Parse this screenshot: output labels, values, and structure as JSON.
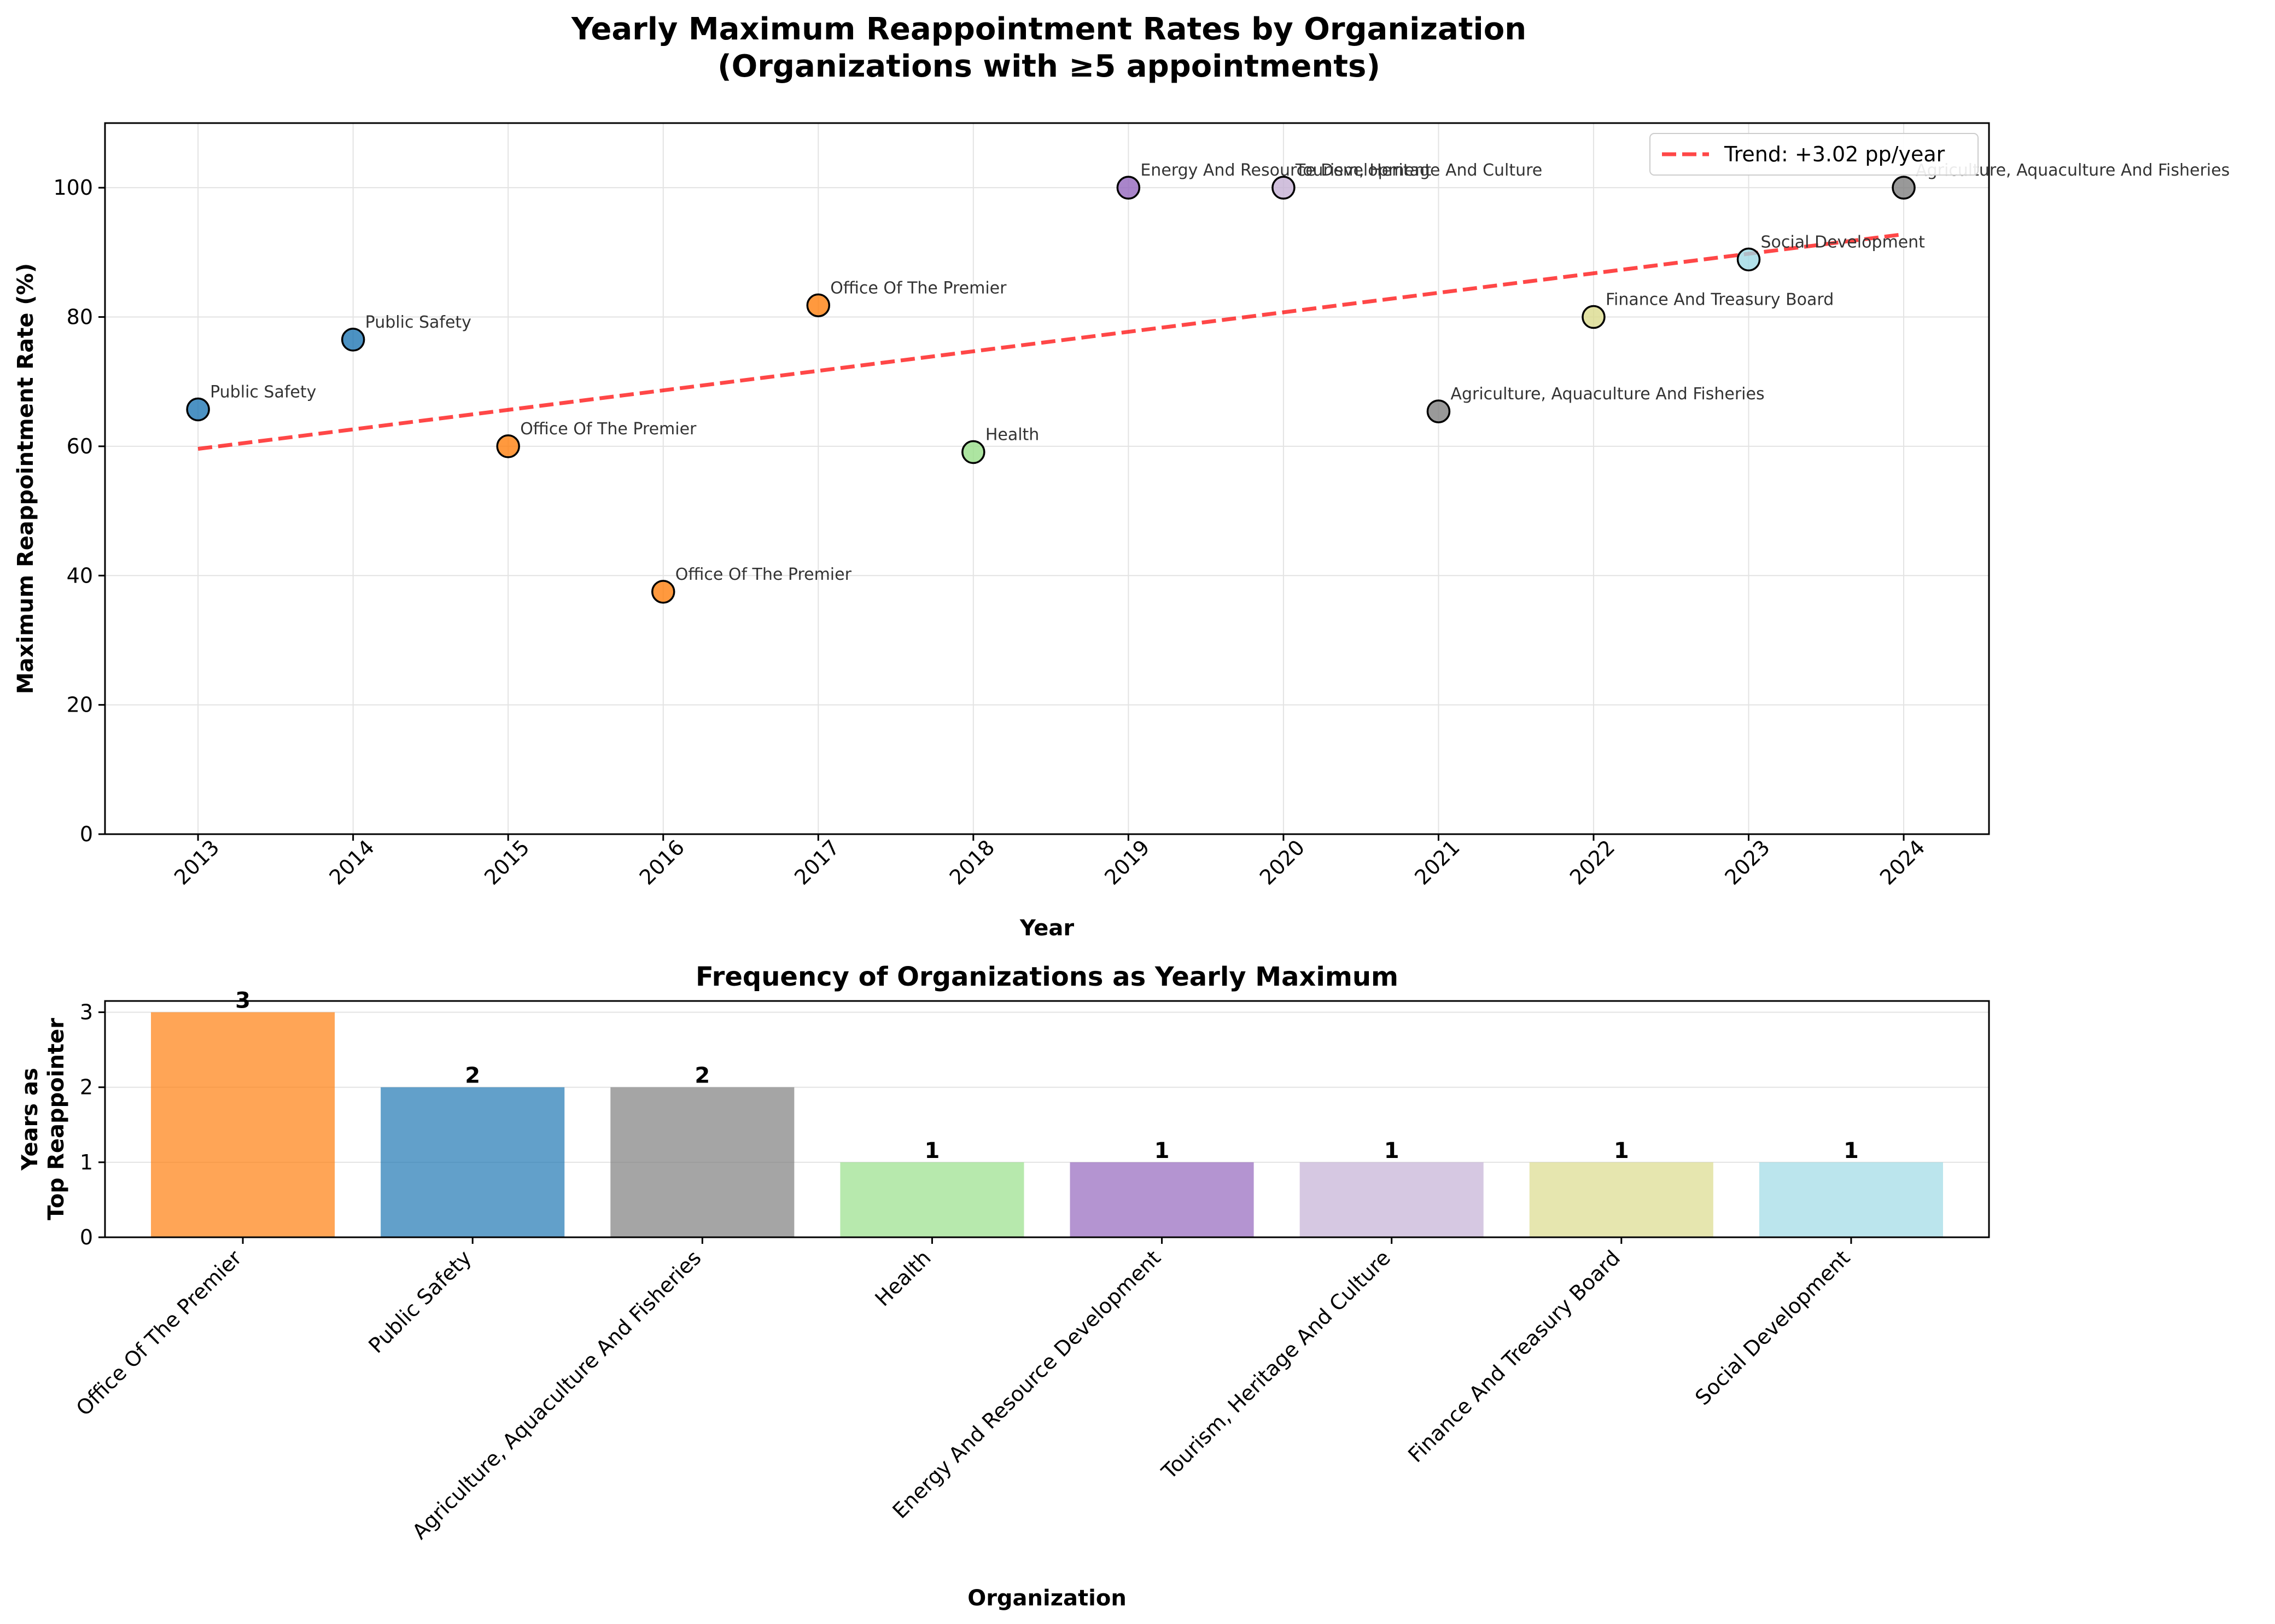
{
  "figure": {
    "title_line1": "Yearly Maximum Reappointment Rates by Organization",
    "title_line2": "(Organizations with ≥5 appointments)"
  },
  "chart_data": [
    {
      "type": "scatter",
      "title": "",
      "xlabel": "Year",
      "ylabel": "Maximum Reappointment Rate (%)",
      "xlim": [
        2012.4,
        2024.55
      ],
      "ylim": [
        0,
        110
      ],
      "xticks": [
        2013,
        2014,
        2015,
        2016,
        2017,
        2018,
        2019,
        2020,
        2021,
        2022,
        2023,
        2024
      ],
      "yticks": [
        0,
        20,
        40,
        60,
        80,
        100
      ],
      "grid": true,
      "legend_position": "top-right",
      "points": [
        {
          "x": 2013,
          "y": 65.7,
          "label": "Public Safety",
          "color": "#1f77b4"
        },
        {
          "x": 2014,
          "y": 76.5,
          "label": "Public Safety",
          "color": "#1f77b4"
        },
        {
          "x": 2015,
          "y": 60.0,
          "label": "Office Of The Premier",
          "color": "#ff7f0e"
        },
        {
          "x": 2016,
          "y": 37.5,
          "label": "Office Of The Premier",
          "color": "#ff7f0e"
        },
        {
          "x": 2017,
          "y": 81.8,
          "label": "Office Of The Premier",
          "color": "#ff7f0e"
        },
        {
          "x": 2018,
          "y": 59.1,
          "label": "Health",
          "color": "#98df8a"
        },
        {
          "x": 2019,
          "y": 100.0,
          "label": "Energy And Resource Development",
          "color": "#9467bd"
        },
        {
          "x": 2020,
          "y": 100.0,
          "label": "Tourism, Heritage And Culture",
          "color": "#c5b0d5"
        },
        {
          "x": 2021,
          "y": 65.4,
          "label": "Agriculture, Aquaculture And Fisheries",
          "color": "#7f7f7f"
        },
        {
          "x": 2022,
          "y": 80.0,
          "label": "Finance And Treasury Board",
          "color": "#dbdb8d"
        },
        {
          "x": 2023,
          "y": 88.9,
          "label": "Social Development",
          "color": "#9edae5"
        },
        {
          "x": 2024,
          "y": 100.0,
          "label": "Agriculture, Aquaculture And Fisheries",
          "color": "#7f7f7f"
        }
      ],
      "trend": {
        "name": "Trend: +3.02 pp/year",
        "x": [
          2013,
          2024
        ],
        "y": [
          59.6,
          92.8
        ],
        "color": "#ff0000"
      }
    },
    {
      "type": "bar",
      "title": "Frequency of Organizations as Yearly Maximum",
      "xlabel": "Organization",
      "ylabel_line1": "Years as",
      "ylabel_line2": "Top Reappointer",
      "ylim": [
        0,
        3.15
      ],
      "yticks": [
        0,
        1,
        2,
        3
      ],
      "grid": true,
      "categories": [
        "Office Of The Premier",
        "Public Safety",
        "Agriculture, Aquaculture And Fisheries",
        "Health",
        "Energy And Resource Development",
        "Tourism, Heritage And Culture",
        "Finance And Treasury Board",
        "Social Development"
      ],
      "values": [
        3,
        2,
        2,
        1,
        1,
        1,
        1,
        1
      ],
      "colors": [
        "#ff7f0e",
        "#1f77b4",
        "#7f7f7f",
        "#98df8a",
        "#9467bd",
        "#c5b0d5",
        "#dbdb8d",
        "#9edae5"
      ]
    }
  ]
}
